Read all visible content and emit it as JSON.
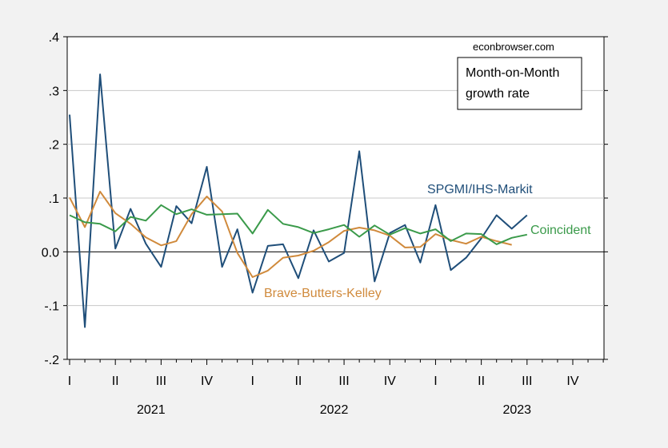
{
  "chart_data": {
    "type": "line",
    "title": "",
    "credit": "econbrowser.com",
    "annotation_box": [
      "Month-on-Month",
      "growth rate"
    ],
    "xlabel": "",
    "ylabel": "",
    "x_start": "2021-01",
    "x_end": "2023-12",
    "ylim": [
      -0.2,
      0.4
    ],
    "yticks": [
      -0.2,
      -0.1,
      0.0,
      0.1,
      0.2,
      0.3,
      0.4
    ],
    "ytick_labels": [
      "-.2",
      "-.1",
      "0.0",
      ".1",
      ".2",
      ".3",
      ".4"
    ],
    "quarter_ticks": [
      "I",
      "II",
      "III",
      "IV",
      "I",
      "II",
      "III",
      "IV",
      "I",
      "II",
      "III",
      "IV"
    ],
    "years": [
      "2021",
      "2022",
      "2023"
    ],
    "grid": true,
    "zero_line": true,
    "series": [
      {
        "name": "SPGMI/IHS-Markit",
        "color": "#1f4e79",
        "values": [
          0.255,
          -0.14,
          0.33,
          0.006,
          0.08,
          0.015,
          -0.028,
          0.085,
          0.053,
          0.158,
          -0.028,
          0.042,
          -0.076,
          0.011,
          0.014,
          -0.049,
          0.04,
          -0.018,
          -0.002,
          0.187,
          -0.055,
          0.035,
          0.05,
          -0.02,
          0.087,
          -0.034,
          -0.011,
          0.025,
          0.068,
          0.043,
          0.068
        ]
      },
      {
        "name": "Brave-Butters-Kelley",
        "color": "#d08a3c",
        "values": [
          0.101,
          0.046,
          0.112,
          0.072,
          0.052,
          0.027,
          0.012,
          0.02,
          0.07,
          0.103,
          0.075,
          -0.002,
          -0.047,
          -0.035,
          -0.011,
          -0.007,
          0.002,
          0.018,
          0.039,
          0.045,
          0.04,
          0.03,
          0.008,
          0.009,
          0.033,
          0.022,
          0.015,
          0.028,
          0.02,
          0.013
        ]
      },
      {
        "name": "Coincident",
        "color": "#3a9a4a",
        "values": [
          0.068,
          0.055,
          0.052,
          0.038,
          0.065,
          0.058,
          0.087,
          0.07,
          0.079,
          0.069,
          0.07,
          0.071,
          0.034,
          0.078,
          0.052,
          0.046,
          0.035,
          0.042,
          0.05,
          0.028,
          0.049,
          0.032,
          0.044,
          0.034,
          0.042,
          0.02,
          0.034,
          0.033,
          0.014,
          0.026,
          0.032
        ]
      }
    ]
  }
}
